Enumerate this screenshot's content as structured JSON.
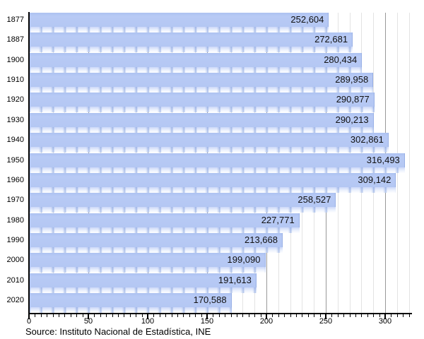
{
  "chart_data": {
    "type": "bar",
    "orientation": "horizontal",
    "title": "",
    "xlabel": "",
    "ylabel": "",
    "categories": [
      "1877",
      "1887",
      "1900",
      "1910",
      "1920",
      "1930",
      "1940",
      "1950",
      "1960",
      "1970",
      "1980",
      "1990",
      "2000",
      "2010",
      "2020"
    ],
    "values": [
      252604,
      272681,
      280434,
      289958,
      290877,
      290213,
      302861,
      316493,
      309142,
      258527,
      227771,
      213668,
      199090,
      191613,
      170588
    ],
    "value_labels": [
      "252,604",
      "272,681",
      "280,434",
      "289,958",
      "290,877",
      "290,213",
      "302,861",
      "316,493",
      "309,142",
      "258,527",
      "227,771",
      "213,668",
      "199,090",
      "191,613",
      "170,588"
    ],
    "axis_unit_divisor": 1000,
    "xlim": [
      0,
      320
    ],
    "x_tick_labels": [
      "0",
      "50",
      "100",
      "150",
      "200",
      "250",
      "300"
    ],
    "x_major_tick_step": 50,
    "x_minor_tick_step": 5,
    "grid_step": 10,
    "major_grid_step": 50,
    "grid": true,
    "legend": false,
    "colors": {
      "bar_fill": "#b4c7f3",
      "bar_edge": "#97afe6",
      "reflection_top": "#ccd8f8",
      "grid_minor": "#e3e3e3",
      "grid_major": "#999999",
      "axis": "#000000",
      "label_text": "#111111"
    }
  },
  "footer": {
    "source": "Source: Instituto Nacional de Estadística, INE"
  }
}
